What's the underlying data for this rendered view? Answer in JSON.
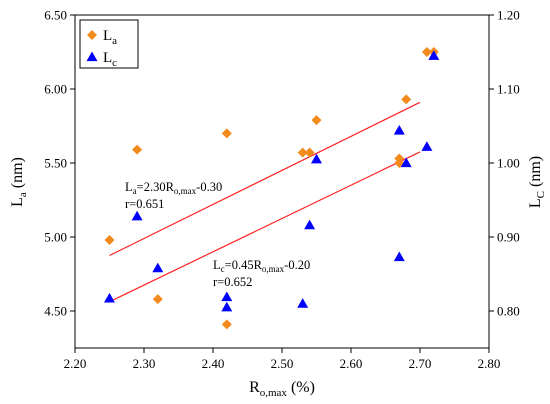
{
  "chart_data": {
    "type": "scatter",
    "xlabel": "R",
    "xlabel_sub": "o,max",
    "xlabel_unit": " (%)",
    "ylabel_left": "L",
    "ylabel_left_sub": "a",
    "ylabel_left_unit": " (nm)",
    "ylabel_right": "L",
    "ylabel_right_sub": "C",
    "ylabel_right_unit": " (nm)",
    "xlim": [
      2.2,
      2.8
    ],
    "ylim_left": [
      4.25,
      6.5
    ],
    "ylim_right": [
      0.75,
      1.2
    ],
    "x_ticks": [
      "2.20",
      "2.30",
      "2.40",
      "2.50",
      "2.60",
      "2.70",
      "2.80"
    ],
    "y_left_ticks": [
      "4.50",
      "5.00",
      "5.50",
      "6.00",
      "6.50"
    ],
    "y_right_ticks": [
      "0.80",
      "0.90",
      "1.00",
      "1.10",
      "1.20"
    ],
    "grid": false,
    "legend_position": "top-left",
    "colors": {
      "La": "#f28a1c",
      "Lc": "#0000ff",
      "fit": "#ff2020"
    },
    "series": [
      {
        "name": "L",
        "name_sub": "a",
        "axis": "left",
        "marker": "diamond",
        "x": [
          2.25,
          2.29,
          2.32,
          2.42,
          2.42,
          2.53,
          2.54,
          2.55,
          2.67,
          2.67,
          2.68,
          2.71,
          2.72
        ],
        "y": [
          4.98,
          5.59,
          4.58,
          5.7,
          4.41,
          5.57,
          5.57,
          5.79,
          5.53,
          5.5,
          5.93,
          6.25,
          6.25
        ]
      },
      {
        "name": "L",
        "name_sub": "c",
        "axis": "right",
        "marker": "triangle",
        "x": [
          2.25,
          2.29,
          2.32,
          2.42,
          2.42,
          2.53,
          2.54,
          2.55,
          2.67,
          2.67,
          2.68,
          2.71,
          2.72
        ],
        "y": [
          0.817,
          0.928,
          0.858,
          0.819,
          0.805,
          0.81,
          0.916,
          1.005,
          0.873,
          1.044,
          1.0,
          1.022,
          1.145
        ]
      }
    ],
    "fits": [
      {
        "axis": "left",
        "x_range": [
          2.25,
          2.7
        ],
        "slope": 2.3,
        "intercept": -0.3,
        "equation": {
          "pre": "L",
          "pre_sub": "a",
          "mid": "=2.30R",
          "mid_sub": "o,max",
          "post": "-0.30"
        },
        "r_label": "r=0.651"
      },
      {
        "axis": "right",
        "x_range": [
          2.25,
          2.7
        ],
        "slope": 0.45,
        "intercept": -0.2,
        "equation": {
          "pre": "L",
          "pre_sub": "c",
          "mid": "=0.45R",
          "mid_sub": "o,max",
          "post": "-0.20"
        },
        "r_label": "r=0.652"
      }
    ]
  }
}
